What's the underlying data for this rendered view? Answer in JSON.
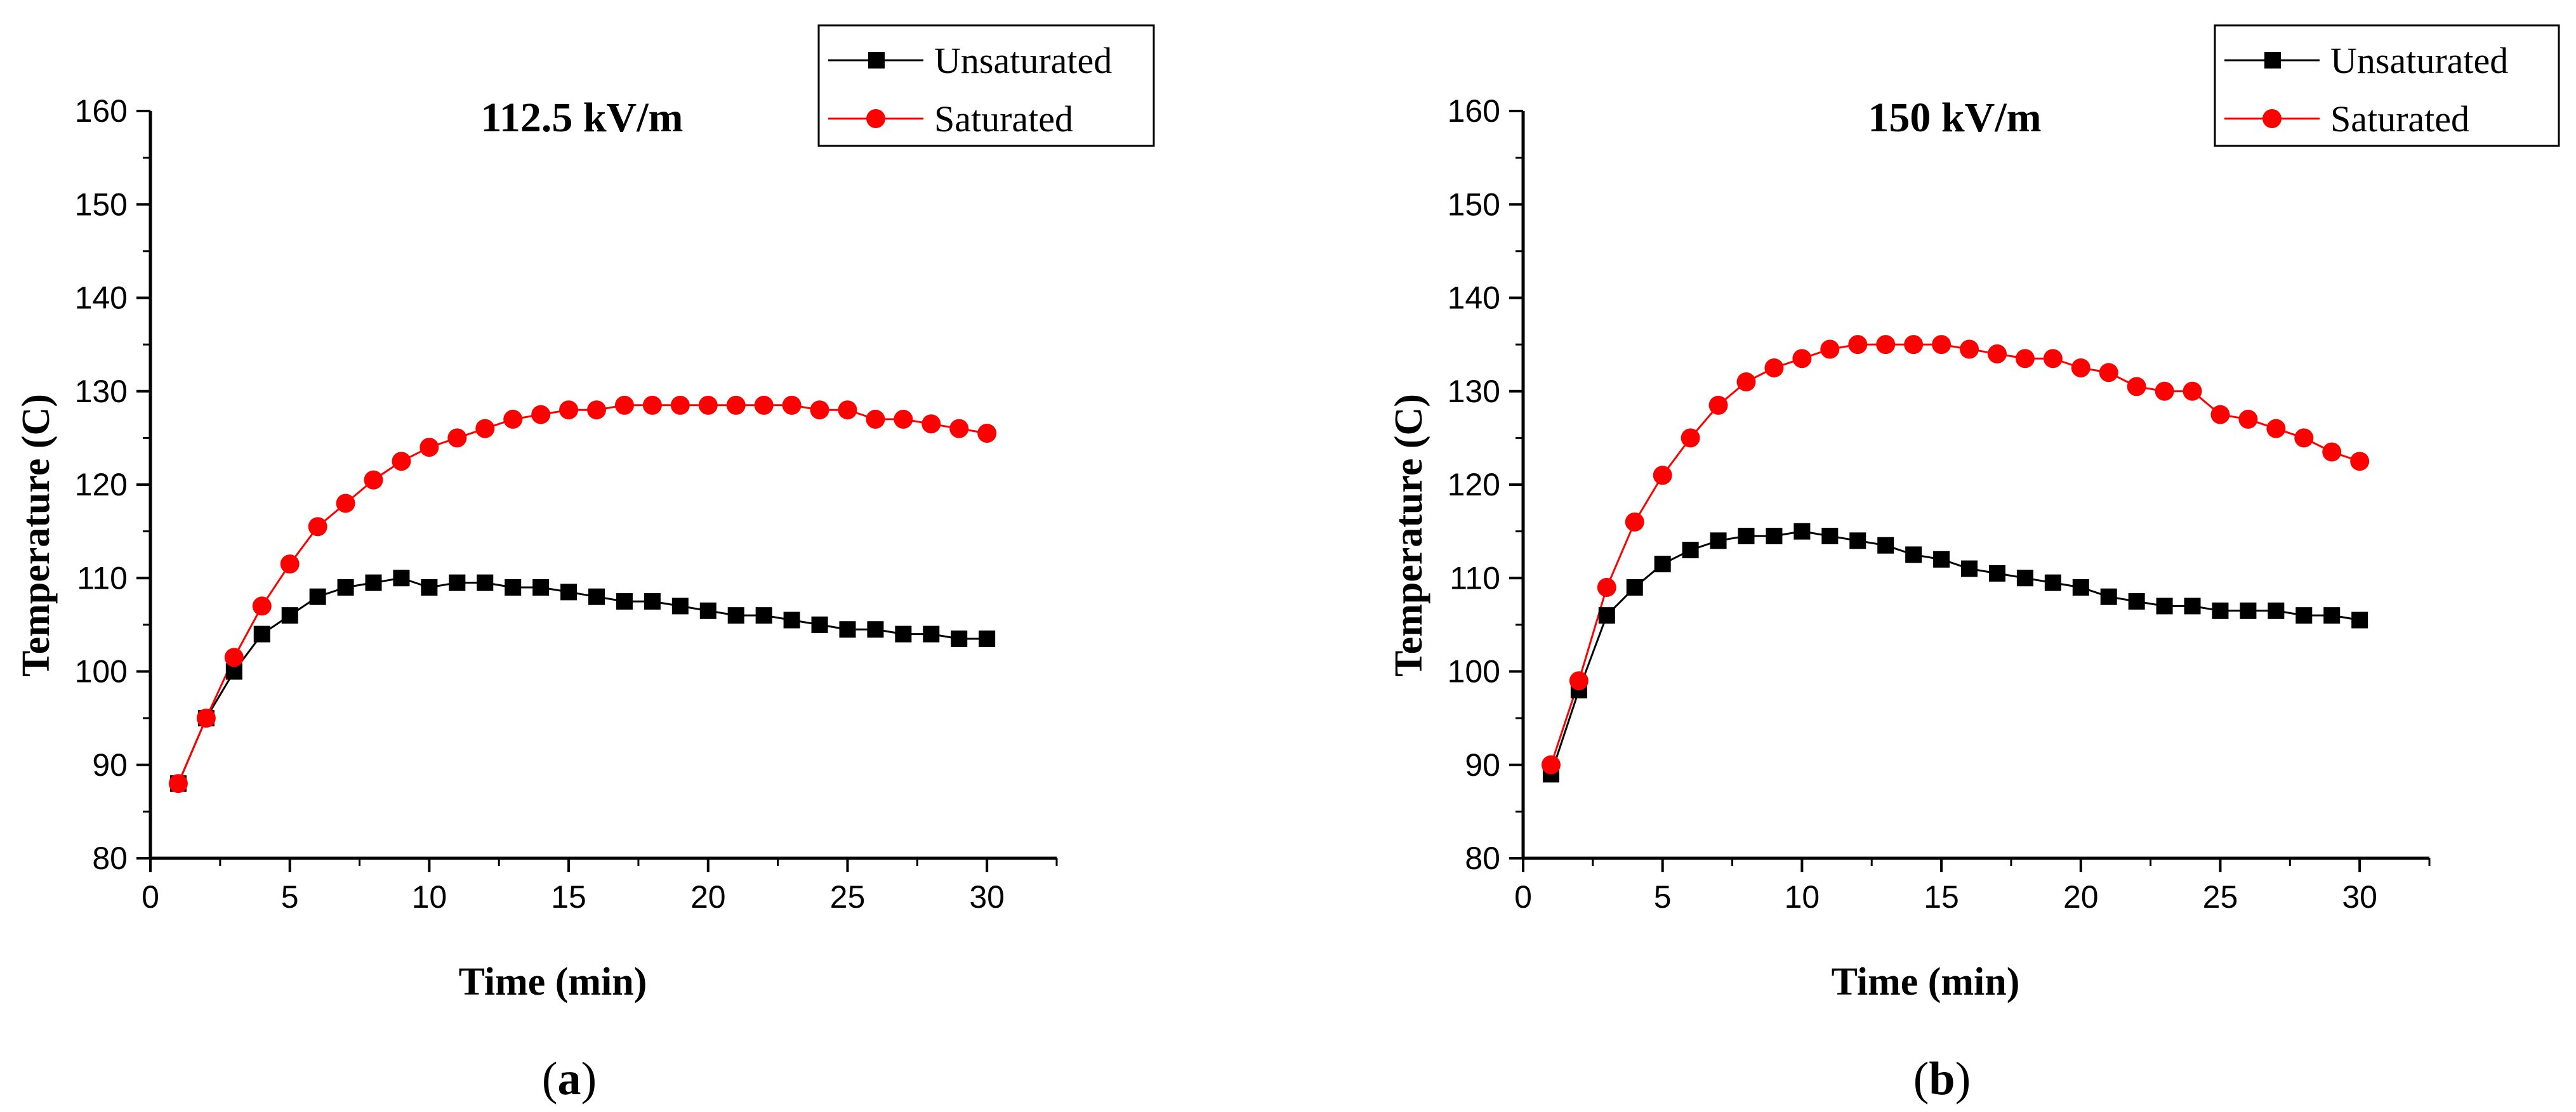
{
  "chart_data": [
    {
      "type": "line",
      "title": "112.5 kV/m",
      "caption": {
        "open": "(",
        "letter": "a",
        "close": ")"
      },
      "xlabel": "Time (min)",
      "ylabel": "Temperature (C)",
      "xlim": [
        0,
        32.5
      ],
      "ylim": [
        80,
        160
      ],
      "xticks": [
        0,
        5,
        10,
        15,
        20,
        25,
        30
      ],
      "yticks": [
        80,
        90,
        100,
        110,
        120,
        130,
        140,
        150,
        160
      ],
      "legend": "top-right",
      "series": [
        {
          "name": "Unsaturated",
          "color": "#000000",
          "marker": "square",
          "x": [
            1,
            2,
            3,
            4,
            5,
            6,
            7,
            8,
            9,
            10,
            11,
            12,
            13,
            14,
            15,
            16,
            17,
            18,
            19,
            20,
            21,
            22,
            23,
            24,
            25,
            26,
            27,
            28,
            29,
            30
          ],
          "y": [
            88,
            95,
            100,
            104,
            106,
            108,
            109,
            109.5,
            110,
            109,
            109.5,
            109.5,
            109,
            109,
            108.5,
            108,
            107.5,
            107.5,
            107,
            106.5,
            106,
            106,
            105.5,
            105,
            104.5,
            104.5,
            104,
            104,
            103.5,
            103.5
          ]
        },
        {
          "name": "Saturated",
          "color": "#ff0000",
          "marker": "circle",
          "x": [
            1,
            2,
            3,
            4,
            5,
            6,
            7,
            8,
            9,
            10,
            11,
            12,
            13,
            14,
            15,
            16,
            17,
            18,
            19,
            20,
            21,
            22,
            23,
            24,
            25,
            26,
            27,
            28,
            29,
            30
          ],
          "y": [
            88,
            95,
            101.5,
            107,
            111.5,
            115.5,
            118,
            120.5,
            122.5,
            124,
            125,
            126,
            127,
            127.5,
            128,
            128,
            128.5,
            128.5,
            128.5,
            128.5,
            128.5,
            128.5,
            128.5,
            128,
            128,
            127,
            127,
            126.5,
            126,
            125.5
          ]
        }
      ]
    },
    {
      "type": "line",
      "title": "150 kV/m",
      "caption": {
        "open": "(",
        "letter": "b",
        "close": ")"
      },
      "xlabel": "Time (min)",
      "ylabel": "Temperature (C)",
      "xlim": [
        0,
        32.5
      ],
      "ylim": [
        80,
        160
      ],
      "xticks": [
        0,
        5,
        10,
        15,
        20,
        25,
        30
      ],
      "yticks": [
        80,
        90,
        100,
        110,
        120,
        130,
        140,
        150,
        160
      ],
      "legend": "top-right",
      "series": [
        {
          "name": "Unsaturated",
          "color": "#000000",
          "marker": "square",
          "x": [
            1,
            2,
            3,
            4,
            5,
            6,
            7,
            8,
            9,
            10,
            11,
            12,
            13,
            14,
            15,
            16,
            17,
            18,
            19,
            20,
            21,
            22,
            23,
            24,
            25,
            26,
            27,
            28,
            29,
            30
          ],
          "y": [
            89,
            98,
            106,
            109,
            111.5,
            113,
            114,
            114.5,
            114.5,
            115,
            114.5,
            114,
            113.5,
            112.5,
            112,
            111,
            110.5,
            110,
            109.5,
            109,
            108,
            107.5,
            107,
            107,
            106.5,
            106.5,
            106.5,
            106,
            106,
            105.5
          ]
        },
        {
          "name": "Saturated",
          "color": "#ff0000",
          "marker": "circle",
          "x": [
            1,
            2,
            3,
            4,
            5,
            6,
            7,
            8,
            9,
            10,
            11,
            12,
            13,
            14,
            15,
            16,
            17,
            18,
            19,
            20,
            21,
            22,
            23,
            24,
            25,
            26,
            27,
            28,
            29,
            30
          ],
          "y": [
            90,
            99,
            109,
            116,
            121,
            125,
            128.5,
            131,
            132.5,
            133.5,
            134.5,
            135,
            135,
            135,
            135,
            134.5,
            134,
            133.5,
            133.5,
            132.5,
            132,
            130.5,
            130,
            130,
            127.5,
            127,
            126,
            125,
            123.5,
            122.5
          ]
        }
      ]
    }
  ]
}
